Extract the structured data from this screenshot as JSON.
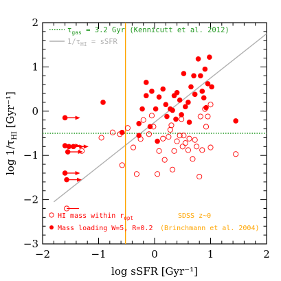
{
  "chart_data": {
    "type": "scatter",
    "xlabel": "log sSFR [Gyr⁻¹]",
    "ylabel": "log 1/τHI [Gyr⁻¹]",
    "xlim": [
      -2,
      2
    ],
    "ylim": [
      -3,
      2
    ],
    "x_ticks": [
      "−2",
      "−1",
      "0",
      "1",
      "2"
    ],
    "y_ticks": [
      "−3",
      "−2",
      "−1",
      "0",
      "1",
      "2"
    ],
    "colors": {
      "red": "#ff0000",
      "green": "#229922",
      "gray": "#b0b0b0",
      "orange": "#ffa500"
    },
    "legend_top": [
      {
        "prefix": "τ",
        "sub": "gas",
        "suffix": " = 3.2 Gyr (Kennicutt et al. 2012)",
        "color": "#229922",
        "style": "dotted"
      },
      {
        "prefix": "1/τ",
        "sub": "HI",
        "suffix": " = sSFR",
        "color": "#b0b0b0",
        "style": "solid"
      }
    ],
    "legend_bottom": [
      {
        "prefix": "HI mass within r",
        "sub": "opt",
        "suffix": "",
        "marker": "open"
      },
      {
        "prefix": "Mass loading W=5, R=0.2",
        "sub": "",
        "suffix": "",
        "marker": "filled"
      }
    ],
    "sdss_label": "SDSS z~0",
    "sdss_ref": "(Brinchmann et al. 2004)",
    "reference_lines": {
      "one_to_one": [
        [
          -1.8,
          -2.05
        ],
        [
          2.0,
          1.75
        ]
      ],
      "tau_gas_y": -0.5,
      "sdss_x": -0.52
    },
    "series": [
      {
        "name": "HI mass within ropt",
        "marker": "open",
        "points": [
          [
            -1.3,
            -0.9
          ],
          [
            -0.95,
            -0.6
          ],
          [
            -0.58,
            -1.22
          ],
          [
            -0.32,
            -1.42
          ],
          [
            -0.62,
            -0.52
          ],
          [
            -0.38,
            -0.82
          ],
          [
            -0.25,
            -0.63
          ],
          [
            -0.1,
            -0.52
          ],
          [
            -0.05,
            -0.1
          ],
          [
            -0.02,
            -0.35
          ],
          [
            0.08,
            -0.9
          ],
          [
            0.05,
            -1.42
          ],
          [
            0.15,
            -0.62
          ],
          [
            0.18,
            -1.1
          ],
          [
            0.25,
            -0.58
          ],
          [
            0.28,
            -0.42
          ],
          [
            0.3,
            -0.32
          ],
          [
            0.32,
            -1.32
          ],
          [
            0.35,
            -0.9
          ],
          [
            0.4,
            -0.68
          ],
          [
            0.45,
            -0.55
          ],
          [
            0.48,
            -0.18
          ],
          [
            0.5,
            -0.8
          ],
          [
            0.52,
            -0.55
          ],
          [
            0.55,
            -0.72
          ],
          [
            0.6,
            -0.88
          ],
          [
            0.62,
            -0.62
          ],
          [
            0.68,
            -1.08
          ],
          [
            0.72,
            -0.65
          ],
          [
            0.75,
            -0.8
          ],
          [
            0.8,
            -1.48
          ],
          [
            0.82,
            -0.12
          ],
          [
            0.85,
            -0.88
          ],
          [
            0.9,
            0.05
          ],
          [
            0.92,
            -0.35
          ],
          [
            0.95,
            -0.12
          ],
          [
            1.0,
            0.15
          ],
          [
            1.0,
            -0.82
          ],
          [
            1.45,
            -0.97
          ],
          [
            -0.75,
            -0.48
          ],
          [
            -0.48,
            -0.38
          ],
          [
            -0.2,
            -0.2
          ]
        ]
      },
      {
        "name": "Mass loading W=5, R=0.2",
        "marker": "filled",
        "points": [
          [
            -0.92,
            0.2
          ],
          [
            -0.58,
            -0.48
          ],
          [
            -0.28,
            -0.55
          ],
          [
            -0.28,
            -0.28
          ],
          [
            -0.22,
            0.05
          ],
          [
            -0.15,
            0.35
          ],
          [
            -0.15,
            0.65
          ],
          [
            -0.05,
            0.45
          ],
          [
            -0.08,
            -0.35
          ],
          [
            0.02,
            0.05
          ],
          [
            0.05,
            -0.68
          ],
          [
            0.08,
            0.32
          ],
          [
            0.15,
            0.5
          ],
          [
            0.2,
            0.15
          ],
          [
            0.22,
            -0.12
          ],
          [
            0.28,
            0.05
          ],
          [
            0.32,
            0.02
          ],
          [
            0.35,
            0.35
          ],
          [
            0.38,
            -0.18
          ],
          [
            0.4,
            0.42
          ],
          [
            0.45,
            0.25
          ],
          [
            0.48,
            -0.08
          ],
          [
            0.52,
            0.85
          ],
          [
            0.55,
            0.1
          ],
          [
            0.6,
            0.2
          ],
          [
            0.62,
            -0.25
          ],
          [
            0.65,
            0.55
          ],
          [
            0.7,
            0.8
          ],
          [
            0.72,
            0.38
          ],
          [
            0.78,
            1.18
          ],
          [
            0.82,
            0.8
          ],
          [
            0.85,
            0.45
          ],
          [
            0.88,
            0.3
          ],
          [
            0.9,
            0.95
          ],
          [
            0.92,
            0.08
          ],
          [
            0.95,
            0.62
          ],
          [
            0.98,
            1.22
          ],
          [
            1.02,
            0.55
          ],
          [
            1.45,
            -0.22
          ]
        ]
      },
      {
        "name": "upper limits (arrows)",
        "marker": "filled-arrow",
        "points": [
          [
            -1.6,
            -0.15
          ],
          [
            -1.6,
            -0.78
          ],
          [
            -1.53,
            -0.8
          ],
          [
            -1.45,
            -0.8
          ],
          [
            -1.55,
            -0.92
          ],
          [
            -1.6,
            -1.4
          ],
          [
            -1.57,
            -1.55
          ]
        ]
      },
      {
        "name": "open limits",
        "marker": "open-limit",
        "points": [
          [
            -1.57,
            -2.2
          ]
        ]
      }
    ]
  }
}
